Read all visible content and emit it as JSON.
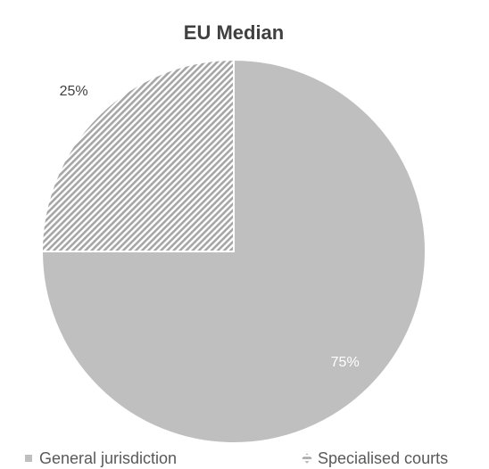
{
  "chart_data": {
    "type": "pie",
    "title": "EU Median",
    "categories": [
      "General jurisdiction",
      "Specialised courts"
    ],
    "values": [
      75,
      25
    ],
    "value_labels": [
      "75%",
      "25%"
    ],
    "colors": [
      "#bfbfbf",
      "#a6a6a6"
    ],
    "hatch": [
      false,
      true
    ],
    "legend": "bottom"
  }
}
